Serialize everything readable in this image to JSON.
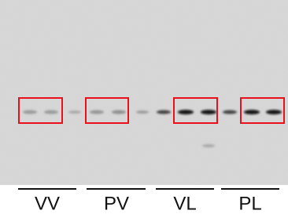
{
  "groups": [
    "VV",
    "PV",
    "VL",
    "PL"
  ]
}
